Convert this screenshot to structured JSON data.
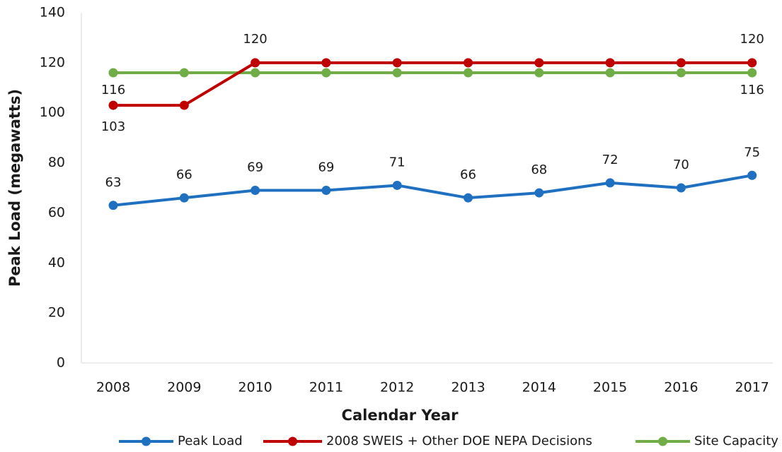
{
  "chart_data": {
    "type": "line",
    "x_label": "Calendar Year",
    "y_label": "Peak Load (megawatts)",
    "categories": [
      "2008",
      "2009",
      "2010",
      "2011",
      "2012",
      "2013",
      "2014",
      "2015",
      "2016",
      "2017"
    ],
    "series": [
      {
        "name": "Peak Load",
        "color": "#1f70c1",
        "values": [
          63,
          66,
          69,
          69,
          71,
          66,
          68,
          72,
          70,
          75
        ]
      },
      {
        "name": "2008 SWEIS + Other DOE NEPA Decisions",
        "color": "#c00000",
        "values": [
          103,
          103,
          120,
          120,
          120,
          120,
          120,
          120,
          120,
          120
        ],
        "value_labels": [
          "103",
          null,
          "120",
          null,
          null,
          null,
          null,
          null,
          null,
          "120"
        ]
      },
      {
        "name": "Site Capacity",
        "color": "#70ad47",
        "values": [
          116,
          116,
          116,
          116,
          116,
          116,
          116,
          116,
          116,
          116
        ],
        "value_labels": [
          "116",
          null,
          null,
          null,
          null,
          null,
          null,
          null,
          null,
          "116"
        ]
      }
    ],
    "ylim": [
      0,
      140
    ],
    "yticks": [
      0,
      20,
      40,
      60,
      80,
      100,
      120,
      140
    ],
    "grid": false,
    "legend": "bottom"
  }
}
